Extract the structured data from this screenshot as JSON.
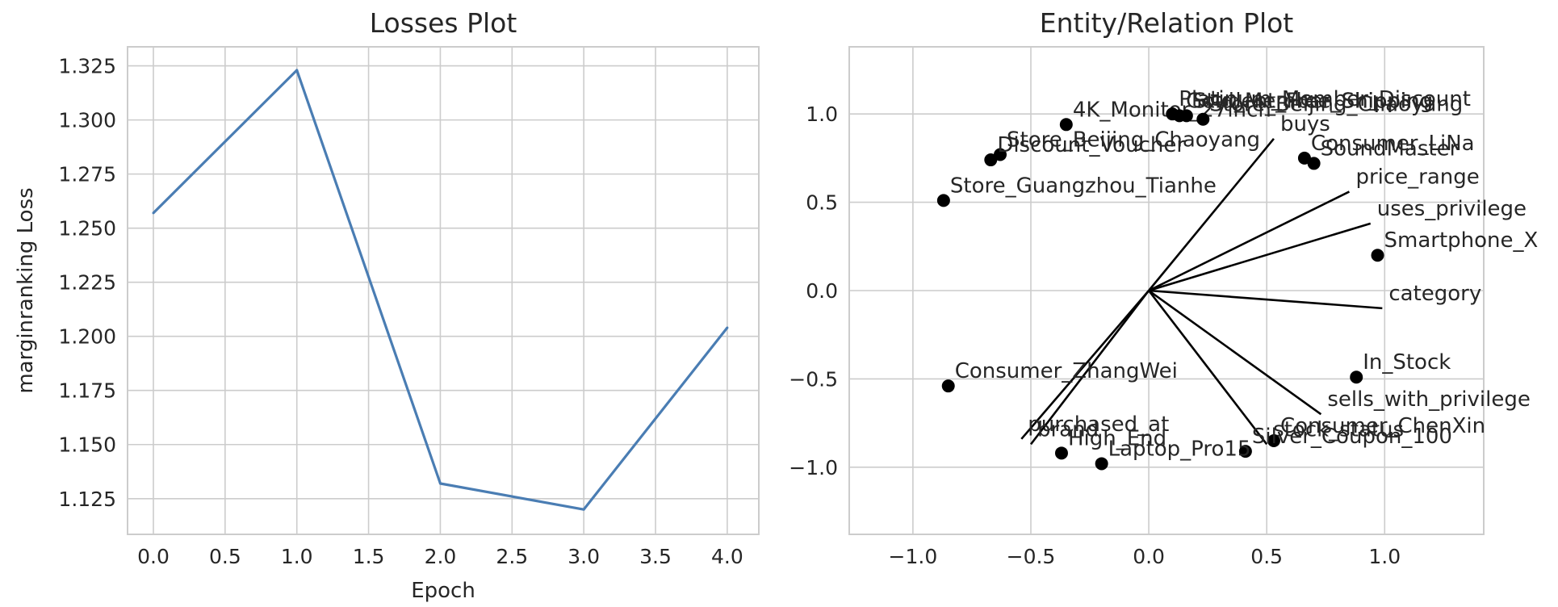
{
  "chart_data": [
    {
      "type": "line",
      "title": "Losses Plot",
      "xlabel": "Epoch",
      "ylabel": "marginranking Loss",
      "xlim": [
        -0.18,
        4.22
      ],
      "ylim": [
        1.1085,
        1.3338
      ],
      "xticks": [
        0.0,
        0.5,
        1.0,
        1.5,
        2.0,
        2.5,
        3.0,
        3.5,
        4.0
      ],
      "xtick_labels": [
        "0.0",
        "0.5",
        "1.0",
        "1.5",
        "2.0",
        "2.5",
        "3.0",
        "3.5",
        "4.0"
      ],
      "yticks": [
        1.125,
        1.15,
        1.175,
        1.2,
        1.225,
        1.25,
        1.275,
        1.3,
        1.325
      ],
      "ytick_labels": [
        "1.125",
        "1.150",
        "1.175",
        "1.200",
        "1.225",
        "1.250",
        "1.275",
        "1.300",
        "1.325"
      ],
      "grid": true,
      "color": "#4a7db3",
      "series": [
        {
          "x": [
            0,
            1,
            2,
            3,
            4
          ],
          "values": [
            1.257,
            1.323,
            1.132,
            1.12,
            1.204
          ]
        }
      ]
    },
    {
      "type": "scatter",
      "title": "Entity/Relation Plot",
      "xlabel": "",
      "ylabel": "",
      "xlim": [
        -1.27,
        1.42
      ],
      "ylim": [
        -1.38,
        1.38
      ],
      "xticks": [
        -1.0,
        -0.5,
        0.0,
        0.5,
        1.0
      ],
      "xtick_labels": [
        "−1.0",
        "−0.5",
        "0.0",
        "0.5",
        "1.0"
      ],
      "yticks": [
        -1.0,
        -0.5,
        0.0,
        0.5,
        1.0
      ],
      "ytick_labels": [
        "−1.0",
        "−0.5",
        "0.0",
        "0.5",
        "1.0"
      ],
      "grid": true,
      "point_color": "#000000",
      "entities": [
        {
          "label": "4K_Monitor_27inch",
          "x": -0.35,
          "y": 0.94
        },
        {
          "label": "Platinum_Member_Discount",
          "x": 0.1,
          "y": 1.0
        },
        {
          "label": "Gold_Member_Shipping",
          "x": 0.13,
          "y": 0.99
        },
        {
          "label": "Student_Free_Shipping",
          "x": 0.16,
          "y": 0.99
        },
        {
          "label": "Store_Beijing_Chaoyang",
          "x": 0.23,
          "y": 0.97
        },
        {
          "label": "Consumer_LiNa",
          "x": 0.66,
          "y": 0.75
        },
        {
          "label": "SoundMaster",
          "x": 0.7,
          "y": 0.72
        },
        {
          "label": "Store_Beijing_Chaoyang",
          "x": -0.63,
          "y": 0.77
        },
        {
          "label": "Discount_Voucher",
          "x": -0.67,
          "y": 0.74
        },
        {
          "label": "Store_Guangzhou_Tianhe",
          "x": -0.87,
          "y": 0.51
        },
        {
          "label": "Smartphone_X",
          "x": 0.97,
          "y": 0.2
        },
        {
          "label": "In_Stock",
          "x": 0.88,
          "y": -0.49
        },
        {
          "label": "Consumer_ZhangWei",
          "x": -0.85,
          "y": -0.54
        },
        {
          "label": "Consumer_ChenXin",
          "x": 0.53,
          "y": -0.85
        },
        {
          "label": "Silver_Coupon_100",
          "x": 0.41,
          "y": -0.91
        },
        {
          "label": "High_End",
          "x": -0.37,
          "y": -0.92
        },
        {
          "label": "Laptop_Pro15",
          "x": -0.2,
          "y": -0.98
        }
      ],
      "relations": [
        {
          "label": "buys",
          "x": 0.53,
          "y": 0.86
        },
        {
          "label": "price_range",
          "x": 0.85,
          "y": 0.56
        },
        {
          "label": "uses_privilege",
          "x": 0.94,
          "y": 0.38
        },
        {
          "label": "category",
          "x": 0.99,
          "y": -0.1
        },
        {
          "label": "sells_with_privilege",
          "x": 0.73,
          "y": -0.7
        },
        {
          "label": "purchased_at",
          "x": -0.54,
          "y": -0.84
        },
        {
          "label": "brand",
          "x": -0.5,
          "y": -0.87
        },
        {
          "label": "stock_status",
          "x": 0.5,
          "y": -0.87
        }
      ]
    }
  ]
}
